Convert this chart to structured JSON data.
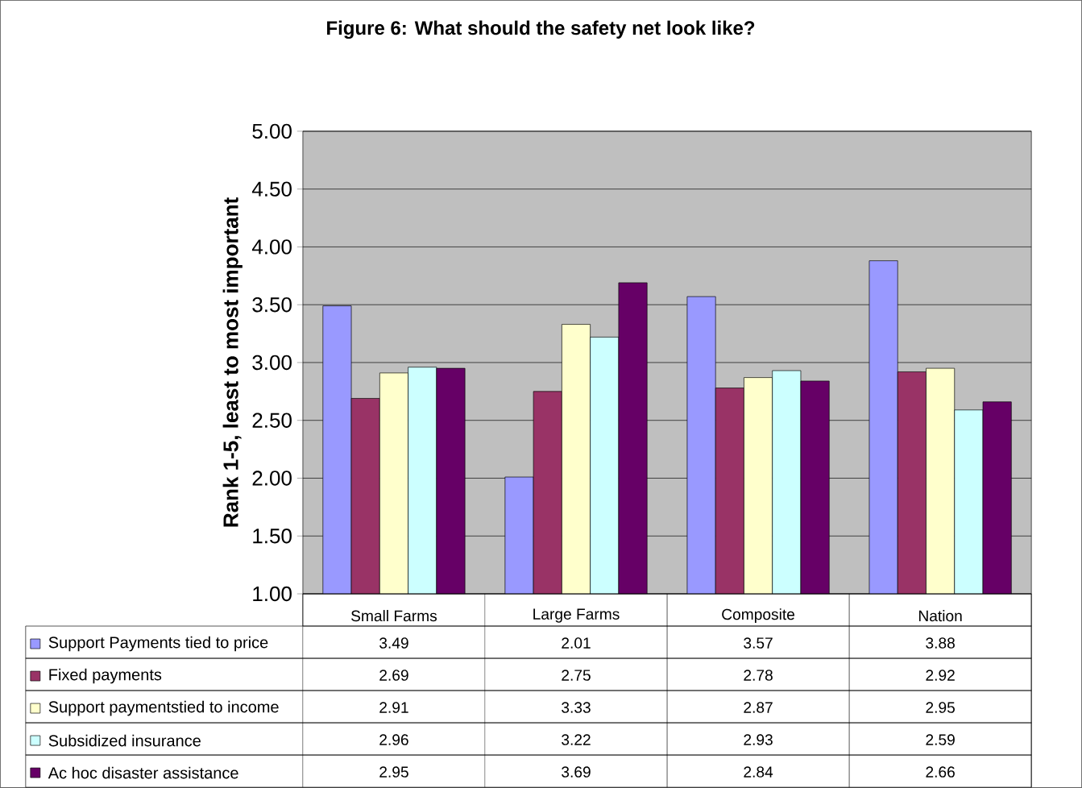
{
  "chart_data": {
    "type": "bar",
    "title": "Figure 6:  What should the safety net look like?",
    "ylabel": "Rank 1-5, least to most important",
    "categories": [
      "Small Farms",
      "Large Farms",
      "Composite",
      "Nation"
    ],
    "series": [
      {
        "name": "Support Payments tied to price",
        "color": "#9999ff",
        "values": [
          3.49,
          2.01,
          3.57,
          3.88
        ]
      },
      {
        "name": "Fixed payments",
        "color": "#993366",
        "values": [
          2.69,
          2.75,
          2.78,
          2.92
        ]
      },
      {
        "name": "Support paymentstied to income",
        "color": "#ffffcc",
        "values": [
          2.91,
          3.33,
          2.87,
          2.95
        ]
      },
      {
        "name": "Subsidized insurance",
        "color": "#ccffff",
        "values": [
          2.96,
          3.22,
          2.93,
          2.59
        ]
      },
      {
        "name": "Ac hoc disaster assistance",
        "color": "#660066",
        "values": [
          2.95,
          3.69,
          2.84,
          2.66
        ]
      }
    ],
    "ylim": [
      1,
      5
    ],
    "yticks": [
      {
        "value": 1,
        "label": "1.00"
      },
      {
        "value": 1.5,
        "label": "1.50"
      },
      {
        "value": 2,
        "label": "2.00"
      },
      {
        "value": 2.5,
        "label": "2.50"
      },
      {
        "value": 3,
        "label": "3.00"
      },
      {
        "value": 3.5,
        "label": "3.50"
      },
      {
        "value": 4,
        "label": "4.00"
      },
      {
        "value": 4.5,
        "label": "4.50"
      },
      {
        "value": 5,
        "label": "5.00"
      }
    ],
    "grid": "y",
    "legend": "bottom",
    "data_labels": true
  }
}
